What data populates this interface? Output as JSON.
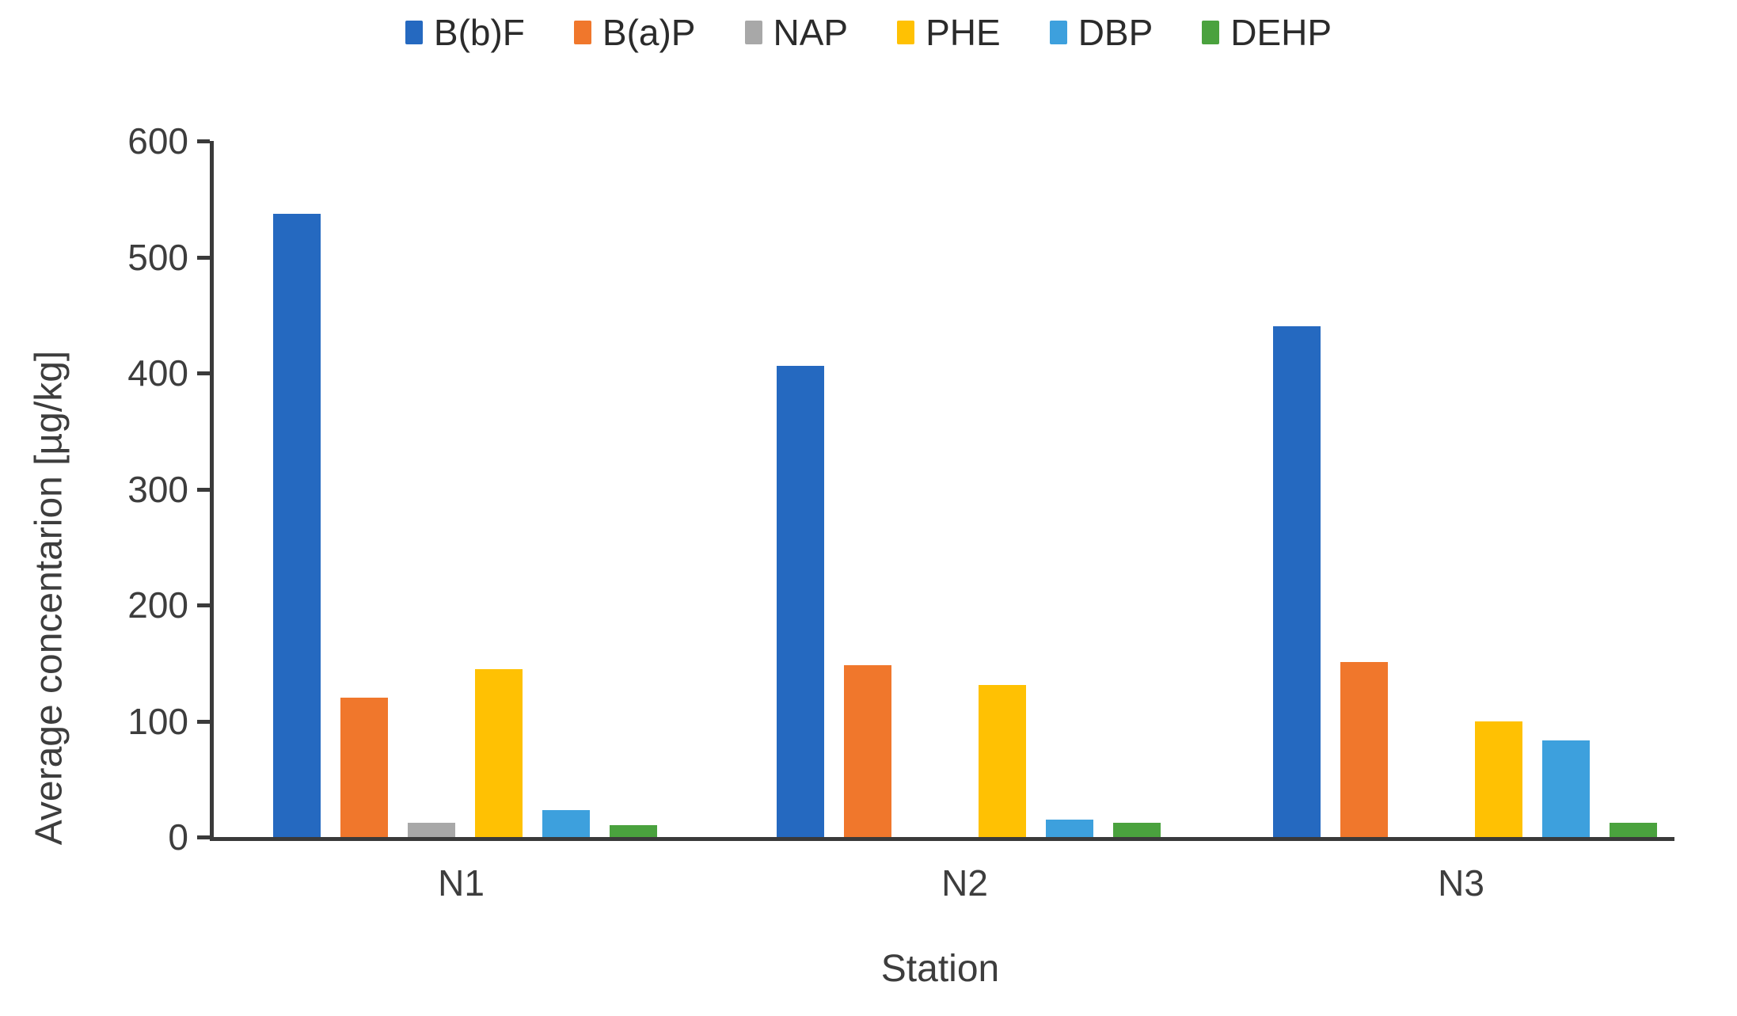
{
  "chart_data": {
    "type": "bar",
    "title": "",
    "categories": [
      "N1",
      "N2",
      "N3"
    ],
    "series": [
      {
        "name": "B(b)F",
        "color": "#2569c0",
        "values": [
          537,
          406,
          440
        ]
      },
      {
        "name": "B(a)P",
        "color": "#f0772c",
        "values": [
          120,
          148,
          151
        ]
      },
      {
        "name": "NAP",
        "color": "#a8a8a8",
        "values": [
          12,
          0,
          0
        ]
      },
      {
        "name": "PHE",
        "color": "#ffc103",
        "values": [
          145,
          131,
          100
        ]
      },
      {
        "name": "DBP",
        "color": "#3da0dd",
        "values": [
          23,
          15,
          83
        ]
      },
      {
        "name": "DEHP",
        "color": "#4aa23e",
        "values": [
          10,
          12,
          12
        ]
      }
    ],
    "xlabel": "Station",
    "ylabel": "Average concentarion [µg/kg]",
    "ylim": [
      0,
      600
    ],
    "yticks": [
      0,
      100,
      200,
      300,
      400,
      500,
      600
    ],
    "grid": false,
    "legend_position": "top",
    "axis_color": "#3a3a3a"
  }
}
